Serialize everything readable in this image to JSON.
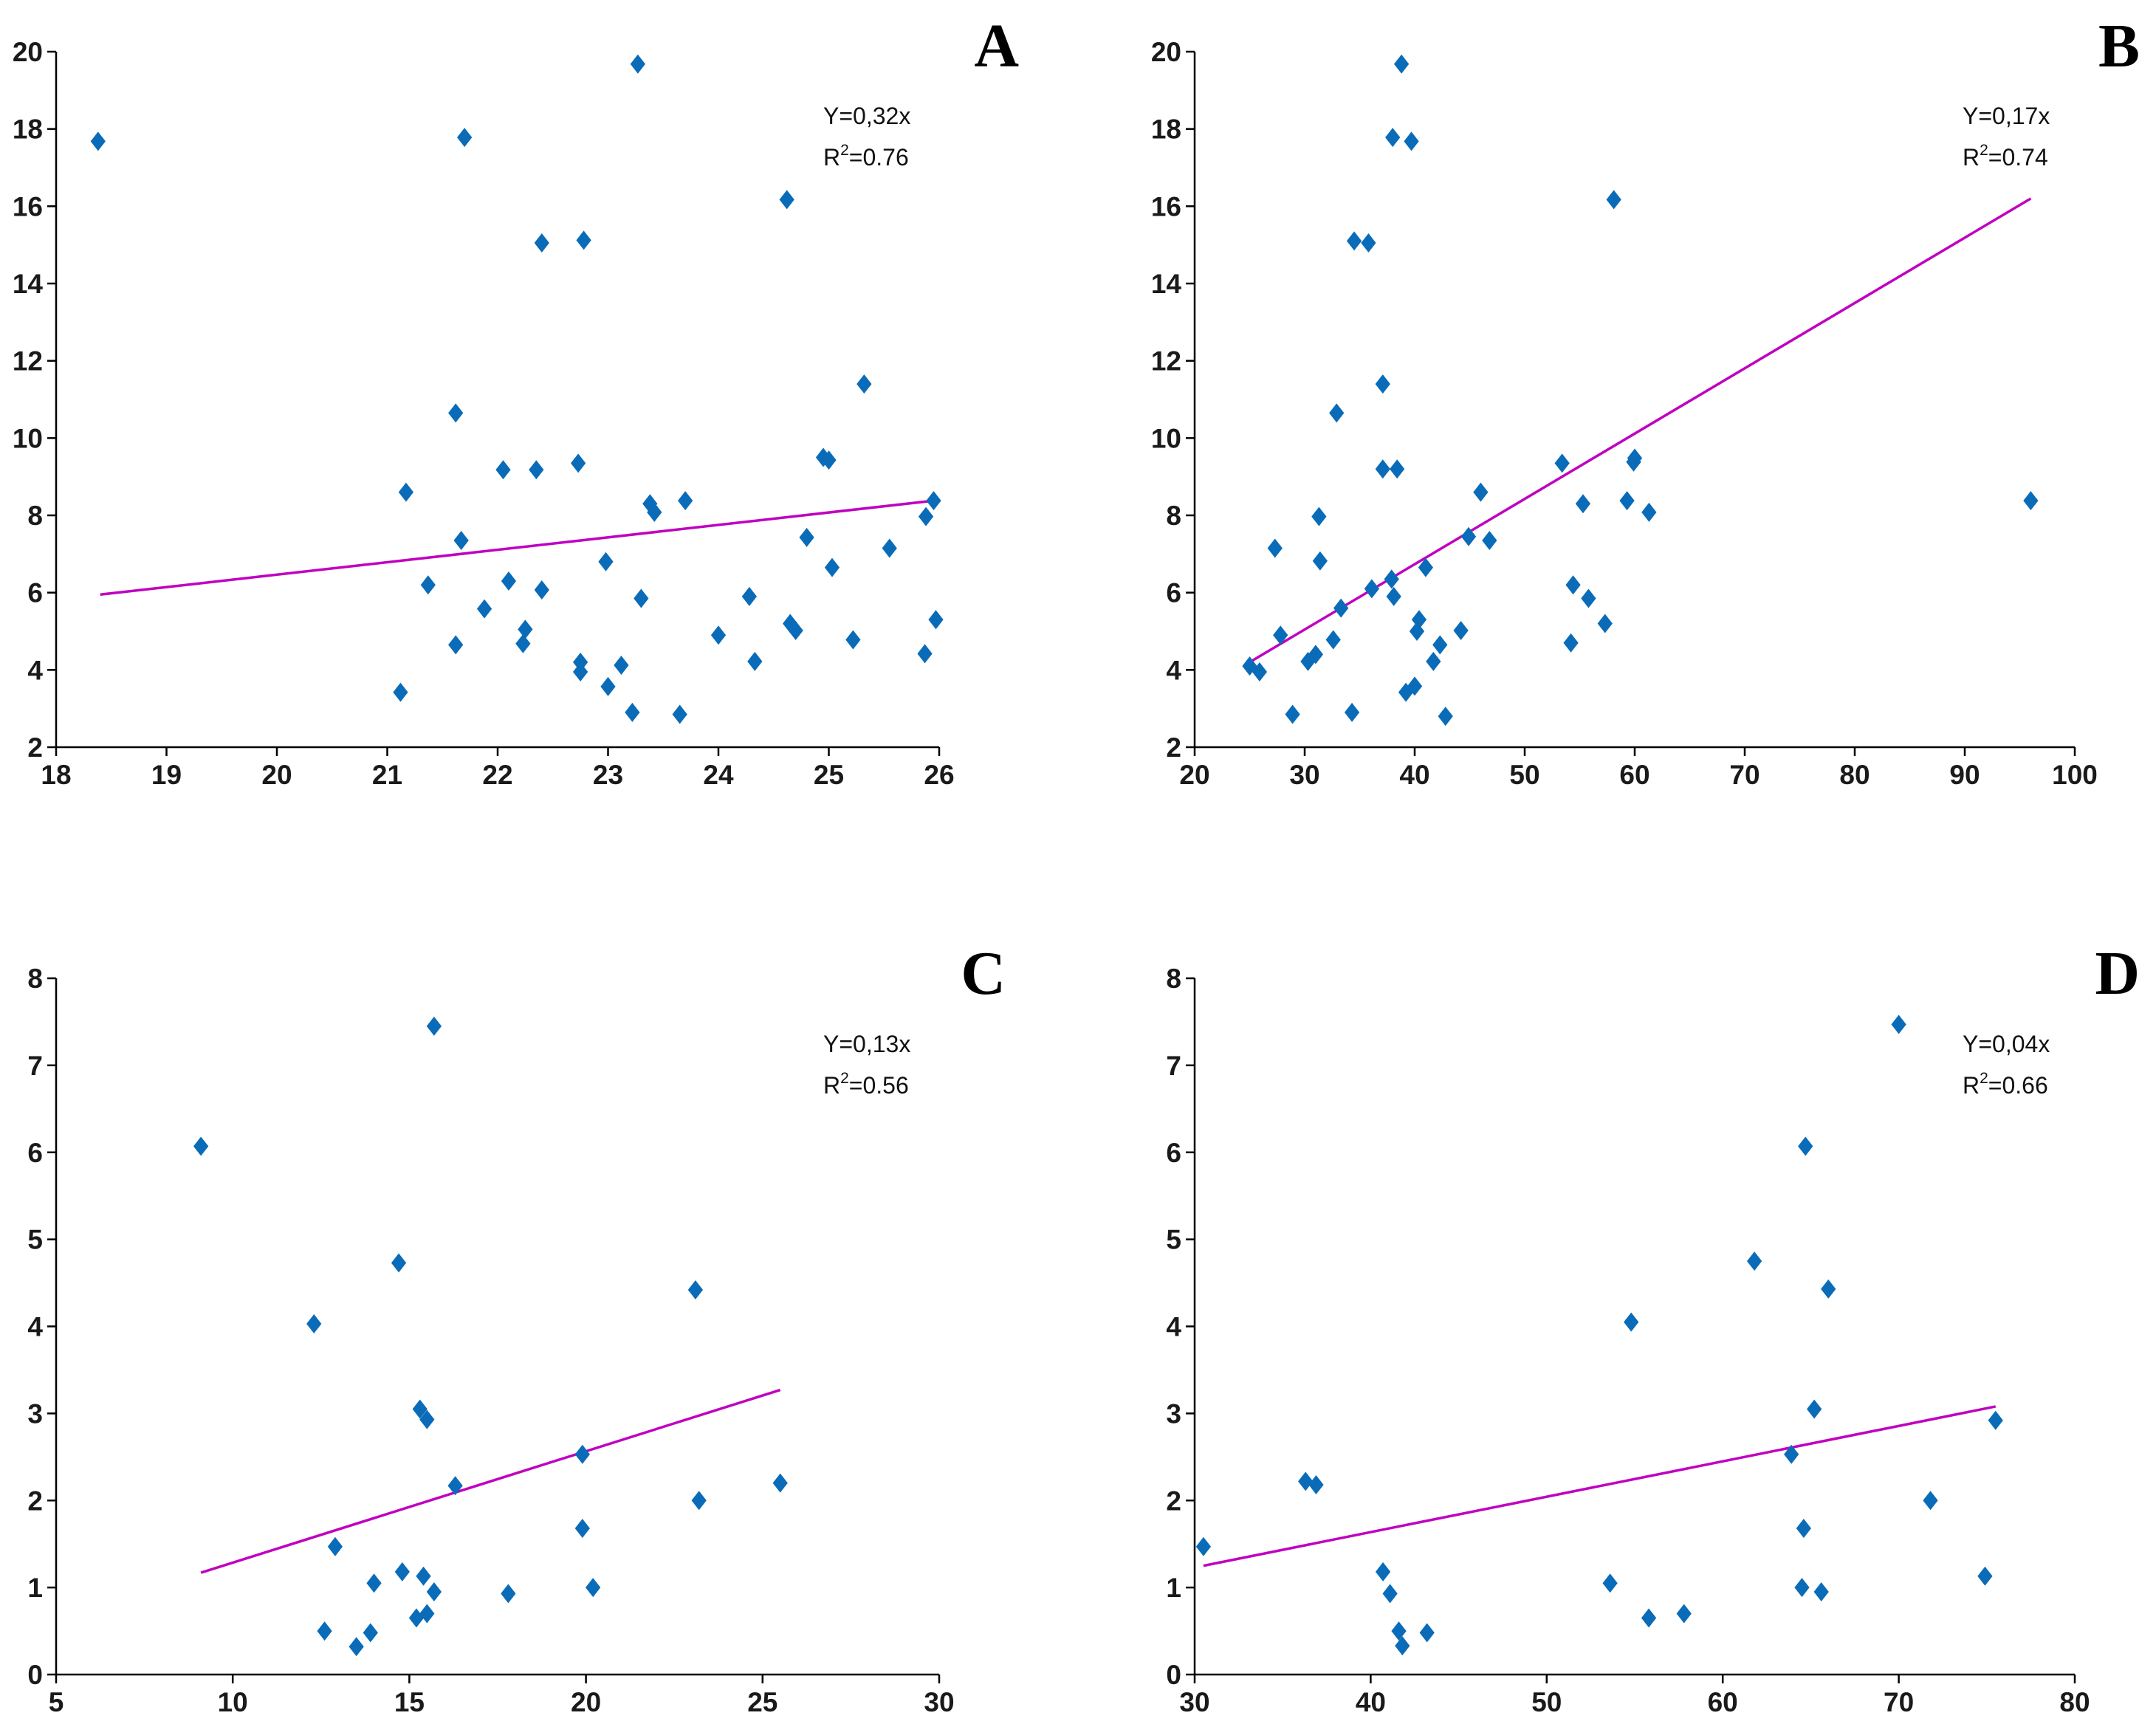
{
  "chart_data": [
    {
      "panel": "A",
      "type": "scatter",
      "title": "A",
      "equation": "Y=0,32x",
      "r2_label": "R",
      "r2_sup": "2",
      "r2_value": "=0.76",
      "xlim": [
        18,
        26
      ],
      "ylim": [
        2,
        20
      ],
      "xticks": [
        18,
        19,
        20,
        21,
        22,
        23,
        24,
        25,
        26
      ],
      "yticks": [
        2,
        4,
        6,
        8,
        10,
        12,
        14,
        16,
        18,
        20
      ],
      "trend": [
        [
          18.4,
          5.95
        ],
        [
          25.95,
          8.38
        ]
      ],
      "points": [
        [
          18.38,
          17.68
        ],
        [
          21.12,
          3.42
        ],
        [
          21.17,
          8.6
        ],
        [
          21.37,
          6.2
        ],
        [
          21.62,
          10.65
        ],
        [
          21.62,
          4.65
        ],
        [
          21.67,
          7.35
        ],
        [
          21.7,
          17.78
        ],
        [
          21.88,
          5.58
        ],
        [
          22.05,
          9.18
        ],
        [
          22.1,
          6.3
        ],
        [
          22.23,
          4.68
        ],
        [
          22.25,
          5.05
        ],
        [
          22.35,
          9.18
        ],
        [
          22.4,
          15.05
        ],
        [
          22.4,
          6.07
        ],
        [
          22.73,
          9.35
        ],
        [
          22.75,
          4.2
        ],
        [
          22.75,
          3.95
        ],
        [
          22.78,
          15.12
        ],
        [
          22.98,
          6.8
        ],
        [
          23.0,
          3.57
        ],
        [
          23.12,
          4.12
        ],
        [
          23.22,
          2.9
        ],
        [
          23.27,
          19.68
        ],
        [
          23.3,
          5.85
        ],
        [
          23.38,
          8.3
        ],
        [
          23.42,
          8.08
        ],
        [
          23.65,
          2.85
        ],
        [
          23.7,
          8.38
        ],
        [
          24.0,
          4.9
        ],
        [
          24.28,
          5.9
        ],
        [
          24.33,
          4.22
        ],
        [
          24.62,
          16.17
        ],
        [
          24.65,
          5.2
        ],
        [
          24.7,
          5.02
        ],
        [
          24.8,
          7.43
        ],
        [
          24.95,
          9.5
        ],
        [
          25.0,
          9.43
        ],
        [
          25.03,
          6.65
        ],
        [
          25.22,
          4.78
        ],
        [
          25.32,
          11.4
        ],
        [
          25.55,
          7.15
        ],
        [
          25.87,
          4.42
        ],
        [
          25.88,
          7.97
        ],
        [
          25.95,
          8.38
        ],
        [
          25.97,
          5.3
        ]
      ]
    },
    {
      "panel": "B",
      "type": "scatter",
      "title": "B",
      "equation": "Y=0,17x",
      "r2_label": "R",
      "r2_sup": "2",
      "r2_value": "=0.74",
      "xlim": [
        20,
        100
      ],
      "ylim": [
        2,
        20
      ],
      "xticks": [
        20,
        30,
        40,
        50,
        60,
        70,
        80,
        90,
        100
      ],
      "yticks": [
        2,
        4,
        6,
        8,
        10,
        12,
        14,
        16,
        18,
        20
      ],
      "trend": [
        [
          25.0,
          4.2
        ],
        [
          96.0,
          16.2
        ]
      ],
      "points": [
        [
          25.0,
          4.1
        ],
        [
          25.9,
          3.95
        ],
        [
          27.3,
          7.15
        ],
        [
          27.8,
          4.9
        ],
        [
          28.9,
          2.85
        ],
        [
          30.3,
          4.22
        ],
        [
          31.0,
          4.4
        ],
        [
          31.3,
          7.97
        ],
        [
          31.4,
          6.82
        ],
        [
          32.6,
          4.78
        ],
        [
          32.9,
          10.65
        ],
        [
          33.3,
          5.6
        ],
        [
          34.3,
          2.9
        ],
        [
          34.5,
          15.1
        ],
        [
          35.8,
          15.05
        ],
        [
          36.1,
          6.1
        ],
        [
          37.1,
          11.4
        ],
        [
          37.1,
          9.2
        ],
        [
          37.9,
          6.35
        ],
        [
          38.0,
          17.78
        ],
        [
          38.1,
          5.9
        ],
        [
          38.4,
          9.2
        ],
        [
          38.8,
          19.68
        ],
        [
          39.2,
          3.42
        ],
        [
          39.7,
          17.68
        ],
        [
          40.0,
          3.58
        ],
        [
          40.2,
          5.0
        ],
        [
          40.4,
          5.3
        ],
        [
          41.0,
          6.65
        ],
        [
          41.7,
          4.22
        ],
        [
          42.3,
          4.65
        ],
        [
          42.8,
          2.8
        ],
        [
          44.2,
          5.02
        ],
        [
          44.9,
          7.45
        ],
        [
          46.0,
          8.6
        ],
        [
          46.8,
          7.35
        ],
        [
          53.4,
          9.35
        ],
        [
          54.2,
          4.7
        ],
        [
          54.4,
          6.2
        ],
        [
          55.3,
          8.3
        ],
        [
          55.8,
          5.85
        ],
        [
          57.3,
          5.2
        ],
        [
          58.1,
          16.17
        ],
        [
          59.3,
          8.38
        ],
        [
          59.9,
          9.38
        ],
        [
          60.0,
          9.48
        ],
        [
          61.3,
          8.08
        ],
        [
          96.0,
          8.38
        ]
      ]
    },
    {
      "panel": "C",
      "type": "scatter",
      "title": "C",
      "equation": "Y=0,13x",
      "r2_label": "R",
      "r2_sup": "2",
      "r2_value": "=0.56",
      "xlim": [
        5,
        30
      ],
      "ylim": [
        0,
        8
      ],
      "xticks": [
        5,
        10,
        15,
        20,
        25,
        30
      ],
      "yticks": [
        0,
        1,
        2,
        3,
        4,
        5,
        6,
        7,
        8
      ],
      "trend": [
        [
          9.1,
          1.17
        ],
        [
          25.5,
          3.27
        ]
      ],
      "points": [
        [
          9.1,
          6.07
        ],
        [
          12.3,
          4.03
        ],
        [
          12.6,
          0.5
        ],
        [
          12.9,
          1.47
        ],
        [
          13.5,
          0.32
        ],
        [
          13.9,
          0.48
        ],
        [
          14.0,
          1.05
        ],
        [
          14.7,
          4.73
        ],
        [
          14.8,
          1.18
        ],
        [
          15.2,
          0.65
        ],
        [
          15.3,
          3.05
        ],
        [
          15.4,
          1.13
        ],
        [
          15.5,
          0.7
        ],
        [
          15.5,
          2.93
        ],
        [
          15.7,
          7.45
        ],
        [
          15.7,
          0.95
        ],
        [
          16.3,
          2.17
        ],
        [
          17.8,
          0.93
        ],
        [
          19.9,
          2.53
        ],
        [
          19.9,
          1.68
        ],
        [
          20.2,
          1.0
        ],
        [
          23.1,
          4.42
        ],
        [
          23.2,
          2.0
        ],
        [
          25.5,
          2.2
        ]
      ]
    },
    {
      "panel": "D",
      "type": "scatter",
      "title": "D",
      "equation": "Y=0,04x",
      "r2_label": "R",
      "r2_sup": "2",
      "r2_value": "=0.66",
      "xlim": [
        30,
        80
      ],
      "ylim": [
        0,
        8
      ],
      "xticks": [
        30,
        40,
        50,
        60,
        70,
        80
      ],
      "yticks": [
        0,
        1,
        2,
        3,
        4,
        5,
        6,
        7,
        8
      ],
      "trend": [
        [
          30.5,
          1.25
        ],
        [
          75.5,
          3.08
        ]
      ],
      "points": [
        [
          30.5,
          1.47
        ],
        [
          36.3,
          2.22
        ],
        [
          36.9,
          2.18
        ],
        [
          40.7,
          1.18
        ],
        [
          41.1,
          0.93
        ],
        [
          41.6,
          0.5
        ],
        [
          41.8,
          0.33
        ],
        [
          43.2,
          0.48
        ],
        [
          53.6,
          1.05
        ],
        [
          54.8,
          4.05
        ],
        [
          55.8,
          0.65
        ],
        [
          57.8,
          0.7
        ],
        [
          61.8,
          4.75
        ],
        [
          63.9,
          2.53
        ],
        [
          64.5,
          1.0
        ],
        [
          64.6,
          1.68
        ],
        [
          64.7,
          6.07
        ],
        [
          65.2,
          3.05
        ],
        [
          65.6,
          0.95
        ],
        [
          66.0,
          4.43
        ],
        [
          70.0,
          7.47
        ],
        [
          71.8,
          2.0
        ],
        [
          74.9,
          1.13
        ],
        [
          75.5,
          2.92
        ]
      ]
    }
  ]
}
